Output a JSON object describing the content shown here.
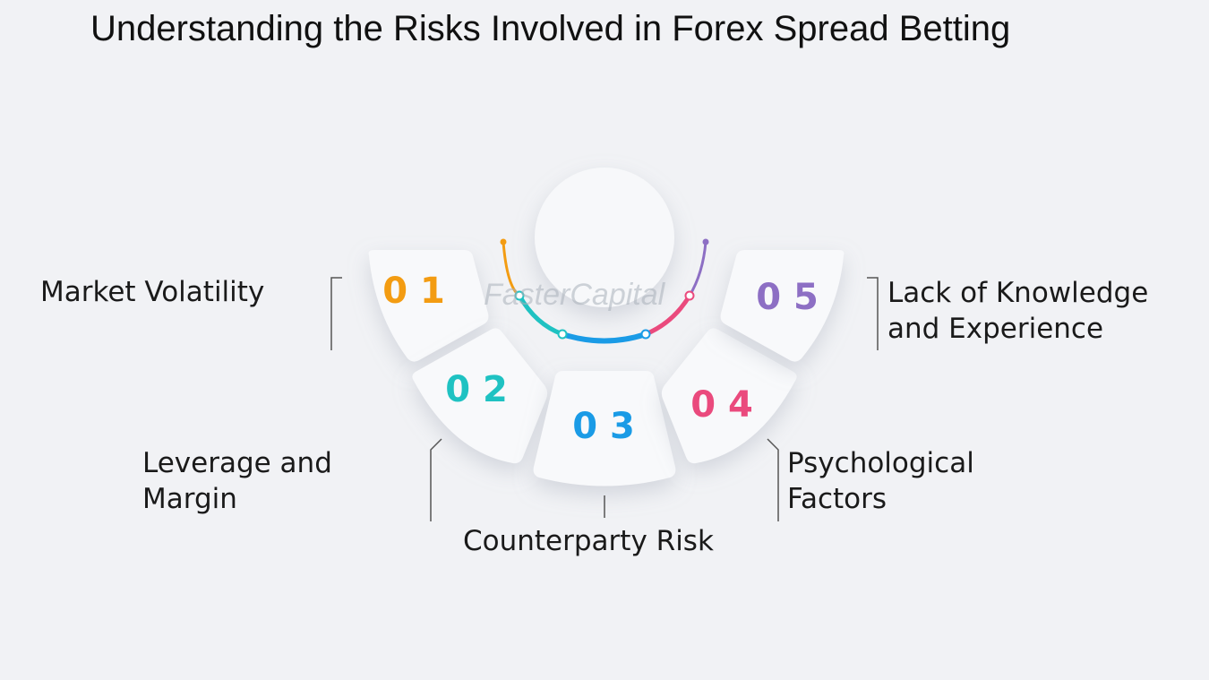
{
  "title": "Understanding the Risks Involved in Forex Spread Betting",
  "watermark": "FasterCapital",
  "items": [
    {
      "number": "0 1",
      "label_lines": [
        "Market Volatility"
      ],
      "color": "#f39c12"
    },
    {
      "number": "0 2",
      "label_lines": [
        "Leverage and",
        "Margin"
      ],
      "color": "#1fc2c2"
    },
    {
      "number": "0 3",
      "label_lines": [
        "Counterparty Risk"
      ],
      "color": "#1a9be6"
    },
    {
      "number": "0 4",
      "label_lines": [
        "Psychological",
        "Factors"
      ],
      "color": "#ea4a7d"
    },
    {
      "number": "0 5",
      "label_lines": [
        "Lack of Knowledge",
        "and Experience"
      ],
      "color": "#8d6fc4"
    }
  ]
}
